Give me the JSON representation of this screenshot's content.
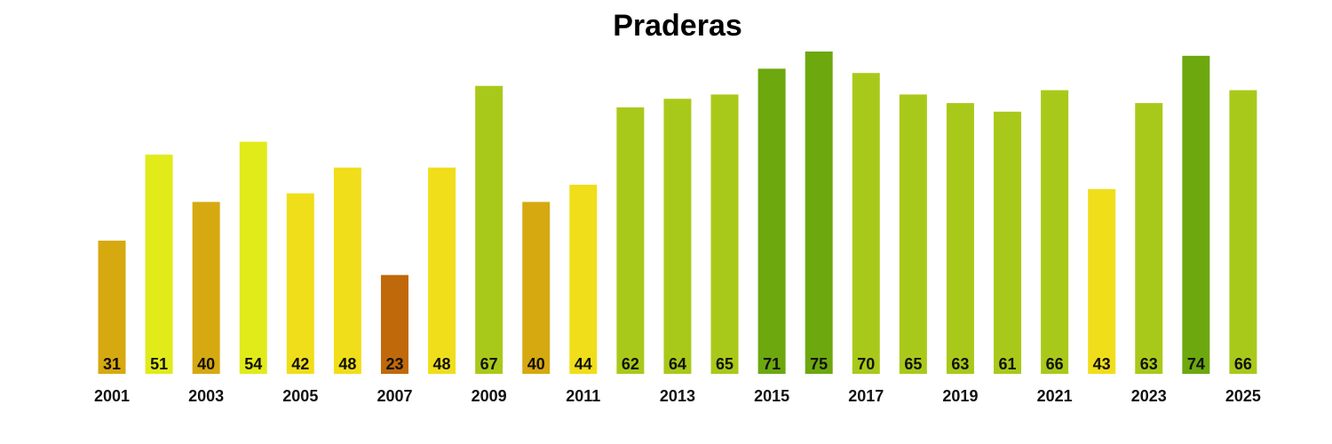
{
  "chart_data": {
    "type": "bar",
    "title": "Praderas",
    "xlabel": "",
    "ylabel": "",
    "categories": [
      "2001",
      "2002",
      "2003",
      "2004",
      "2005",
      "2006",
      "2007",
      "2008",
      "2009",
      "2010",
      "2011",
      "2012",
      "2013",
      "2014",
      "2015",
      "2016",
      "2017",
      "2018",
      "2019",
      "2020",
      "2021",
      "2022",
      "2023",
      "2024",
      "2025"
    ],
    "x_tick_labels": [
      "2001",
      "2003",
      "2005",
      "2007",
      "2009",
      "2011",
      "2013",
      "2015",
      "2017",
      "2019",
      "2021",
      "2023",
      "2025"
    ],
    "values": [
      31,
      51,
      40,
      54,
      42,
      48,
      23,
      48,
      67,
      40,
      44,
      62,
      64,
      65,
      71,
      75,
      70,
      65,
      63,
      61,
      66,
      43,
      63,
      74,
      66
    ],
    "ylim": [
      0,
      75
    ],
    "grid": false,
    "legend": "none",
    "color_scale": [
      {
        "max": 25,
        "color": "#C0690A"
      },
      {
        "max": 41,
        "color": "#D6A911"
      },
      {
        "max": 49,
        "color": "#F0DE1A"
      },
      {
        "max": 60,
        "color": "#E0EB19"
      },
      {
        "max": 70,
        "color": "#A9C91A"
      },
      {
        "max": 100,
        "color": "#6DA80F"
      }
    ]
  }
}
